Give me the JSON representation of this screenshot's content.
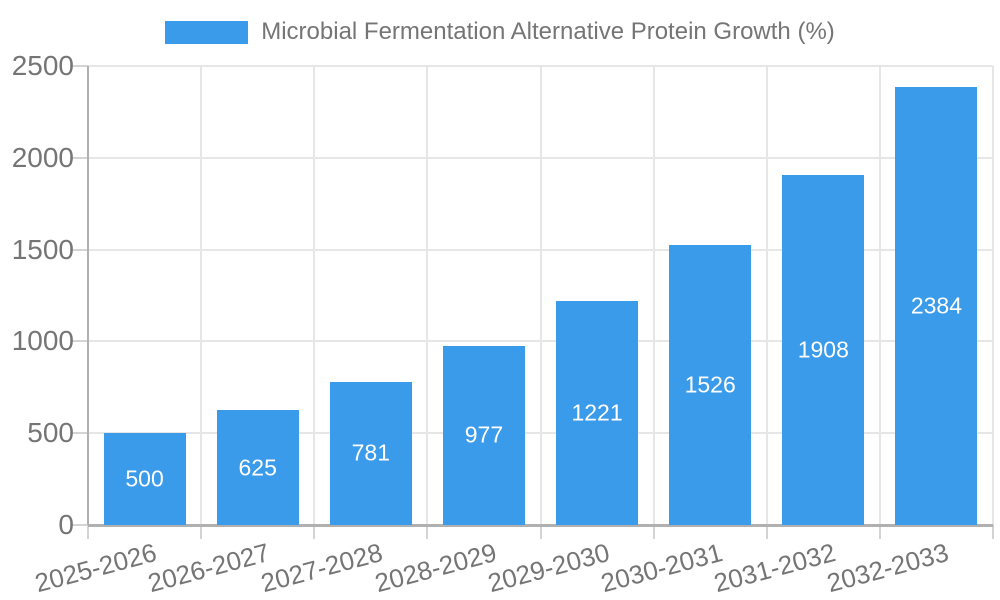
{
  "chart_data": {
    "type": "bar",
    "legend": "Microbial Fermentation Alternative Protein Growth (%)",
    "legend_position": "top",
    "categories": [
      "2025-2026",
      "2026-2027",
      "2027-2028",
      "2028-2029",
      "2029-2030",
      "2030-2031",
      "2031-2032",
      "2032-2033"
    ],
    "values": [
      500,
      625,
      781,
      977,
      1221,
      1526,
      1908,
      2384
    ],
    "value_labels": [
      "500",
      "625",
      "781",
      "977",
      "1221",
      "1526",
      "1908",
      "2384"
    ],
    "yticks": [
      "0",
      "500",
      "1000",
      "1500",
      "2000",
      "2500"
    ],
    "ytick_values": [
      0,
      500,
      1000,
      1500,
      2000,
      2500
    ],
    "ylim": [
      0,
      2500
    ],
    "xlabel": "",
    "ylabel": "",
    "grid": "on",
    "colors": {
      "bar": "#3b9beb",
      "grid": "#e6e6e6",
      "axis": "#b0b0b0",
      "tick": "#d4d4d4",
      "text": "#757575",
      "value_label": "#ffffff",
      "background": "#ffffff"
    }
  }
}
